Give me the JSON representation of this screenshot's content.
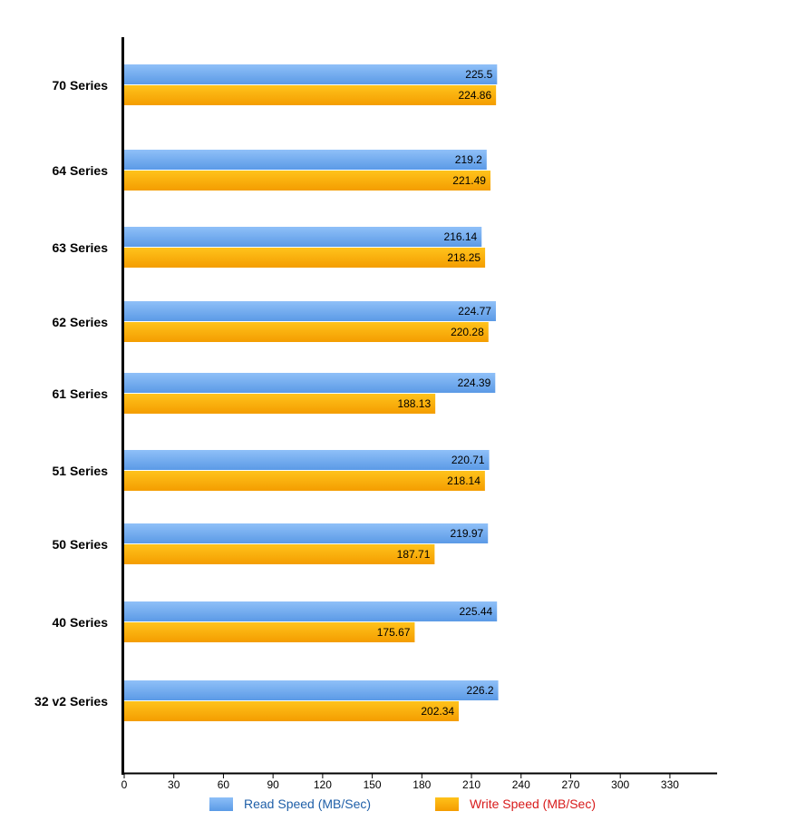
{
  "chart_data": {
    "type": "bar",
    "orientation": "horizontal",
    "categories": [
      "70 Series",
      "64 Series",
      "63 Series",
      "62 Series",
      "61 Series",
      "51 Series",
      "50 Series",
      "40 Series",
      "32 v2 Series"
    ],
    "series": [
      {
        "name": "Read Speed (MB/Sec)",
        "color": "#6ea8f0",
        "values": [
          225.5,
          219.2,
          216.14,
          224.77,
          224.39,
          220.71,
          219.97,
          225.44,
          226.2
        ]
      },
      {
        "name": "Write Speed (MB/Sec)",
        "color": "#ffb000",
        "values": [
          224.86,
          221.49,
          218.25,
          220.28,
          188.13,
          218.14,
          187.71,
          175.67,
          202.34
        ]
      }
    ],
    "xticks": [
      0,
      30,
      60,
      90,
      120,
      150,
      180,
      210,
      240,
      270,
      300,
      330
    ],
    "xlim": [
      0,
      360
    ],
    "grid": false,
    "legend_position": "bottom",
    "legend_colors": {
      "read_text": "#1f5fa8",
      "write_text": "#d81b1b"
    }
  }
}
